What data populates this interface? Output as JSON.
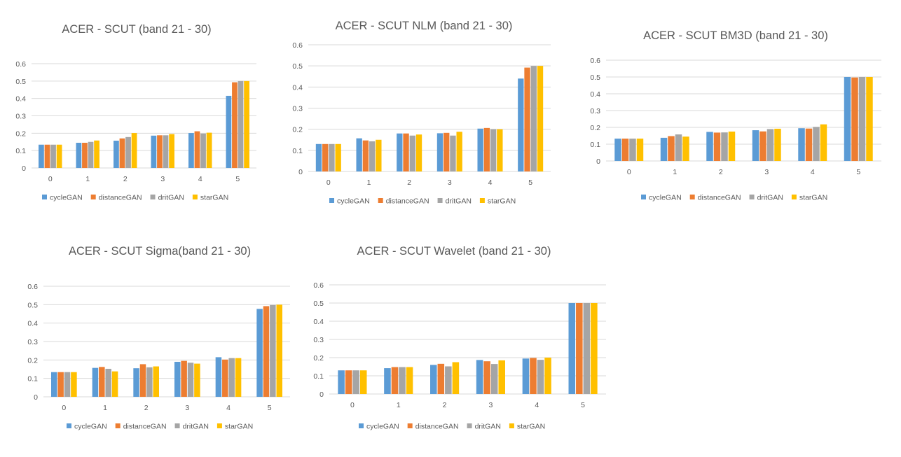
{
  "colors": {
    "cycleGAN": "#5b9bd5",
    "distanceGAN": "#ed7d31",
    "dritGAN": "#a5a5a5",
    "starGAN": "#ffc000"
  },
  "chart_data": [
    {
      "type": "bar",
      "title": "ACER - SCUT (band 21 - 30)",
      "categories": [
        "0",
        "1",
        "2",
        "3",
        "4",
        "5"
      ],
      "ylim": [
        0,
        0.6
      ],
      "yticks": [
        "0",
        "0.1",
        "0.2",
        "0.3",
        "0.4",
        "0.5",
        "0.6"
      ],
      "grid": true,
      "legend_position": "bottom",
      "series": [
        {
          "name": "cycleGAN",
          "values": [
            0.134,
            0.145,
            0.157,
            0.186,
            0.201,
            0.415
          ]
        },
        {
          "name": "distanceGAN",
          "values": [
            0.134,
            0.145,
            0.17,
            0.188,
            0.211,
            0.493
          ]
        },
        {
          "name": "dritGAN",
          "values": [
            0.134,
            0.15,
            0.178,
            0.188,
            0.198,
            0.5
          ]
        },
        {
          "name": "starGAN",
          "values": [
            0.134,
            0.158,
            0.201,
            0.195,
            0.203,
            0.5
          ]
        }
      ]
    },
    {
      "type": "bar",
      "title": "ACER - SCUT NLM (band 21 - 30)",
      "categories": [
        "0",
        "1",
        "2",
        "3",
        "4",
        "5"
      ],
      "ylim": [
        0,
        0.6
      ],
      "yticks": [
        "0",
        "0.1",
        "0.2",
        "0.3",
        "0.4",
        "0.5",
        "0.6"
      ],
      "grid": true,
      "legend_position": "bottom",
      "series": [
        {
          "name": "cycleGAN",
          "values": [
            0.13,
            0.157,
            0.18,
            0.181,
            0.203,
            0.44
          ]
        },
        {
          "name": "distanceGAN",
          "values": [
            0.13,
            0.147,
            0.18,
            0.183,
            0.206,
            0.492
          ]
        },
        {
          "name": "dritGAN",
          "values": [
            0.13,
            0.143,
            0.17,
            0.17,
            0.2,
            0.5
          ]
        },
        {
          "name": "starGAN",
          "values": [
            0.13,
            0.15,
            0.175,
            0.188,
            0.2,
            0.5
          ]
        }
      ]
    },
    {
      "type": "bar",
      "title": "ACER - SCUT BM3D (band 21 - 30)",
      "categories": [
        "0",
        "1",
        "2",
        "3",
        "4",
        "5"
      ],
      "ylim": [
        0,
        0.6
      ],
      "yticks": [
        "0",
        "0.1",
        "0.2",
        "0.3",
        "0.4",
        "0.5",
        "0.6"
      ],
      "grid": true,
      "legend_position": "bottom",
      "series": [
        {
          "name": "cycleGAN",
          "values": [
            0.133,
            0.138,
            0.173,
            0.183,
            0.195,
            0.5
          ]
        },
        {
          "name": "distanceGAN",
          "values": [
            0.133,
            0.148,
            0.169,
            0.176,
            0.193,
            0.497
          ]
        },
        {
          "name": "dritGAN",
          "values": [
            0.133,
            0.158,
            0.17,
            0.19,
            0.203,
            0.5
          ]
        },
        {
          "name": "starGAN",
          "values": [
            0.133,
            0.145,
            0.175,
            0.192,
            0.218,
            0.5
          ]
        }
      ]
    },
    {
      "type": "bar",
      "title": "ACER - SCUT Sigma(band 21 - 30)",
      "categories": [
        "0",
        "1",
        "2",
        "3",
        "4",
        "5"
      ],
      "ylim": [
        0,
        0.6
      ],
      "yticks": [
        "0",
        "0.1",
        "0.2",
        "0.3",
        "0.4",
        "0.5",
        "0.6"
      ],
      "grid": true,
      "legend_position": "bottom",
      "series": [
        {
          "name": "cycleGAN",
          "values": [
            0.134,
            0.157,
            0.155,
            0.19,
            0.215,
            0.477
          ]
        },
        {
          "name": "distanceGAN",
          "values": [
            0.134,
            0.162,
            0.177,
            0.195,
            0.202,
            0.492
          ]
        },
        {
          "name": "dritGAN",
          "values": [
            0.134,
            0.152,
            0.16,
            0.185,
            0.21,
            0.498
          ]
        },
        {
          "name": "starGAN",
          "values": [
            0.134,
            0.138,
            0.165,
            0.18,
            0.21,
            0.5
          ]
        }
      ]
    },
    {
      "type": "bar",
      "title": "ACER - SCUT Wavelet (band 21 - 30)",
      "categories": [
        "0",
        "1",
        "2",
        "3",
        "4",
        "5"
      ],
      "ylim": [
        0,
        0.6
      ],
      "yticks": [
        "0",
        "0.1",
        "0.2",
        "0.3",
        "0.4",
        "0.5",
        "0.6"
      ],
      "grid": true,
      "legend_position": "bottom",
      "series": [
        {
          "name": "cycleGAN",
          "values": [
            0.13,
            0.142,
            0.16,
            0.187,
            0.195,
            0.5
          ]
        },
        {
          "name": "distanceGAN",
          "values": [
            0.13,
            0.148,
            0.166,
            0.18,
            0.198,
            0.5
          ]
        },
        {
          "name": "dritGAN",
          "values": [
            0.13,
            0.148,
            0.152,
            0.165,
            0.188,
            0.5
          ]
        },
        {
          "name": "starGAN",
          "values": [
            0.13,
            0.148,
            0.175,
            0.185,
            0.2,
            0.5
          ]
        }
      ]
    }
  ]
}
